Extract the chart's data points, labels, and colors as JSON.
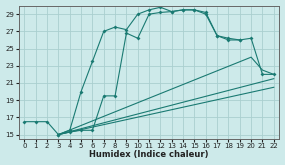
{
  "xlabel": "Humidex (Indice chaleur)",
  "bg_color": "#cdeaea",
  "grid_color": "#aacfcf",
  "line_color": "#1a7a72",
  "xlim": [
    -0.5,
    22.5
  ],
  "ylim": [
    14.5,
    30.0
  ],
  "xticks": [
    0,
    1,
    2,
    3,
    4,
    5,
    6,
    7,
    8,
    9,
    10,
    11,
    12,
    13,
    14,
    15,
    16,
    17,
    18,
    19,
    20,
    21,
    22
  ],
  "yticks": [
    15,
    17,
    19,
    21,
    23,
    25,
    27,
    29
  ],
  "line1_x": [
    0,
    1,
    2,
    3,
    4,
    5,
    6,
    7,
    8,
    9,
    10,
    11,
    12,
    13,
    14,
    15,
    16,
    17,
    18,
    19
  ],
  "line1_y": [
    16.5,
    16.5,
    16.5,
    15.0,
    15.5,
    20.0,
    23.5,
    27.0,
    27.5,
    27.2,
    29.0,
    29.5,
    29.8,
    29.3,
    29.5,
    29.5,
    29.0,
    26.5,
    26.0,
    26.0
  ],
  "line2_x": [
    3,
    4,
    5,
    6,
    7,
    8,
    9,
    10,
    11,
    12,
    13,
    14,
    15,
    16,
    17,
    18,
    19,
    20,
    21,
    22
  ],
  "line2_y": [
    15.0,
    15.3,
    15.5,
    15.5,
    19.5,
    19.5,
    26.8,
    26.2,
    29.0,
    29.2,
    29.3,
    29.5,
    29.5,
    29.2,
    26.5,
    26.2,
    26.0,
    26.2,
    22.0,
    22.0
  ],
  "line3_x": [
    3,
    20,
    21,
    22
  ],
  "line3_y": [
    15.0,
    24.0,
    22.5,
    22.0
  ],
  "line4_x": [
    3,
    22
  ],
  "line4_y": [
    15.0,
    21.5
  ],
  "line5_x": [
    3,
    22
  ],
  "line5_y": [
    15.0,
    20.5
  ]
}
